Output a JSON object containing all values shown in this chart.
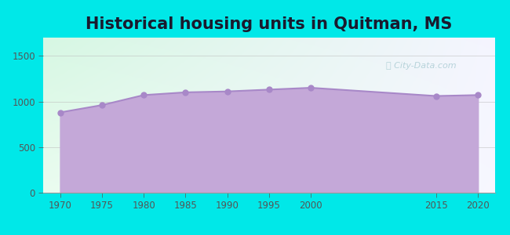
{
  "title": "Historical housing units in Quitman, MS",
  "title_fontsize": 15,
  "title_fontweight": "bold",
  "years": [
    1970,
    1975,
    1980,
    1985,
    1990,
    1995,
    2000,
    2015,
    2020
  ],
  "values": [
    880,
    960,
    1070,
    1100,
    1110,
    1130,
    1150,
    1060,
    1070
  ],
  "xlim": [
    1968,
    2022
  ],
  "ylim": [
    0,
    1700
  ],
  "yticks": [
    0,
    500,
    1000,
    1500
  ],
  "xticks": [
    1970,
    1975,
    1980,
    1985,
    1990,
    1995,
    2000,
    2015,
    2020
  ],
  "background_color": "#00e8e8",
  "fill_color": "#c4a8d8",
  "fill_alpha": 1.0,
  "line_color": "#a888c8",
  "line_width": 1.5,
  "marker_color": "#a888c8",
  "marker_size": 5,
  "watermark_text": "City-Data.com",
  "watermark_color": "#88b8c0",
  "watermark_alpha": 0.55,
  "tick_color": "#555555",
  "grid_color": "#bbbbbb",
  "grid_alpha": 0.6,
  "grad_tl": [
    0.84,
    0.97,
    0.89
  ],
  "grad_tr": [
    0.96,
    0.96,
    1.0
  ],
  "grad_bl": [
    0.92,
    0.99,
    0.94
  ],
  "grad_br": [
    0.97,
    0.97,
    1.0
  ]
}
